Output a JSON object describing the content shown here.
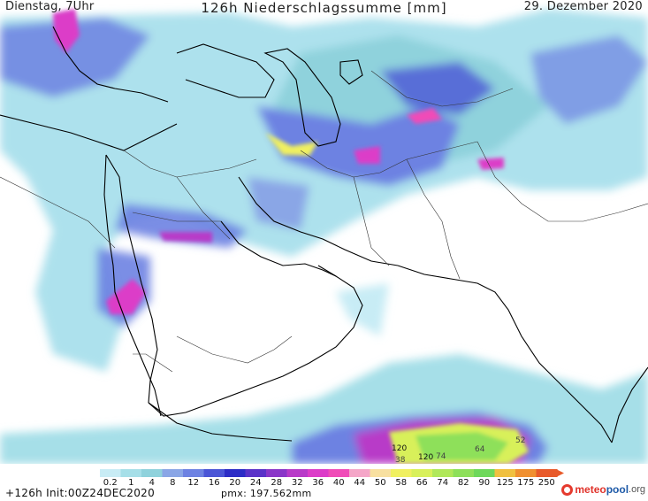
{
  "header": {
    "left": "Dienstag, 7Uhr",
    "title": "126h Niederschlagssumme [mm]",
    "right": "29. Dezember 2020"
  },
  "legend": {
    "labels": [
      "0.2",
      "1",
      "4",
      "8",
      "12",
      "16",
      "20",
      "24",
      "28",
      "32",
      "36",
      "40",
      "44",
      "50",
      "58",
      "66",
      "74",
      "82",
      "90",
      "125",
      "175",
      "250"
    ],
    "colors": [
      "#c8ecf5",
      "#a6dfe8",
      "#8fd2dc",
      "#8aa6e6",
      "#6d82e2",
      "#4a55d6",
      "#2c2cc6",
      "#5a32c8",
      "#8a36c8",
      "#b83ac8",
      "#dc3cc8",
      "#f04cb8",
      "#f5a6c8",
      "#f8e0a0",
      "#f0f060",
      "#d8f05a",
      "#b0e85a",
      "#8ee05a",
      "#6ed85a",
      "#f0c040",
      "#f09030",
      "#e85a2a"
    ]
  },
  "map_values": {
    "v1": "120",
    "v2": "120",
    "v3": "74",
    "v4": "64",
    "v5": "52",
    "v6": "38"
  },
  "footer": {
    "init": "+126h  Init:00Z24DEC2020",
    "pmx": "pmx: 197.562mm"
  },
  "logo": {
    "part1": "meteo",
    "part2": "pool",
    "part3": ".org"
  }
}
